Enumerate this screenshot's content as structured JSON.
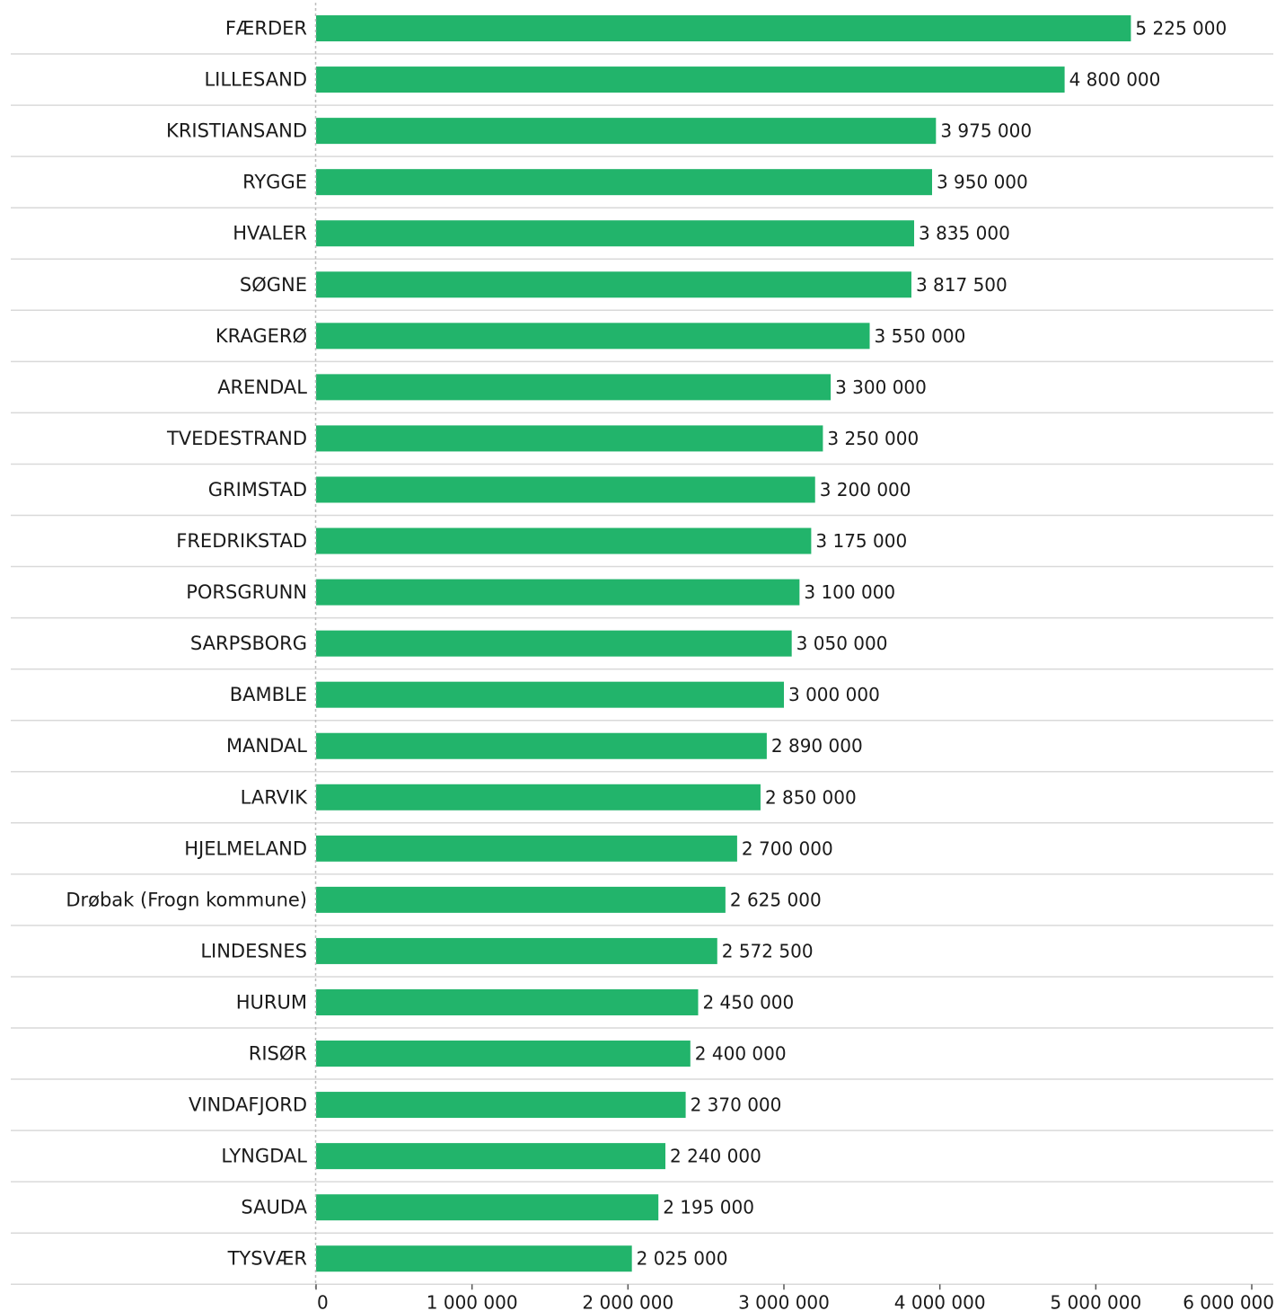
{
  "chart_data": {
    "type": "bar",
    "orientation": "horizontal",
    "categories": [
      "FÆRDER",
      "LILLESAND",
      "KRISTIANSAND",
      "RYGGE",
      "HVALER",
      "SØGNE",
      "KRAGERØ",
      "ARENDAL",
      "TVEDESTRAND",
      "GRIMSTAD",
      "FREDRIKSTAD",
      "PORSGRUNN",
      "SARPSBORG",
      "BAMBLE",
      "MANDAL",
      "LARVIK",
      "HJELMELAND",
      "Drøbak (Frogn kommune)",
      "LINDESNES",
      "HURUM",
      "RISØR",
      "VINDAFJORD",
      "LYNGDAL",
      "SAUDA",
      "TYSVÆR"
    ],
    "values": [
      5225000,
      4800000,
      3975000,
      3950000,
      3835000,
      3817500,
      3550000,
      3300000,
      3250000,
      3200000,
      3175000,
      3100000,
      3050000,
      3000000,
      2890000,
      2850000,
      2700000,
      2625000,
      2572500,
      2450000,
      2400000,
      2370000,
      2240000,
      2195000,
      2025000
    ],
    "value_labels": [
      "5 225 000",
      "4 800 000",
      "3 975 000",
      "3 950 000",
      "3 835 000",
      "3 817 500",
      "3 550 000",
      "3 300 000",
      "3 250 000",
      "3 200 000",
      "3 175 000",
      "3 100 000",
      "3 050 000",
      "3 000 000",
      "2 890 000",
      "2 850 000",
      "2 700 000",
      "2 625 000",
      "2 572 500",
      "2 450 000",
      "2 400 000",
      "2 370 000",
      "2 240 000",
      "2 195 000",
      "2 025 000"
    ],
    "x_ticks": [
      0,
      1000000,
      2000000,
      3000000,
      4000000,
      5000000,
      6000000
    ],
    "x_tick_labels": [
      "0",
      "1 000 000",
      "2 000 000",
      "3 000 000",
      "4 000 000",
      "5 000 000",
      "6 000 000"
    ],
    "xlim": [
      0,
      6000000
    ],
    "bar_color": "#22b46b",
    "title": "",
    "xlabel": "",
    "ylabel": "",
    "grid": false,
    "legend": "none"
  }
}
